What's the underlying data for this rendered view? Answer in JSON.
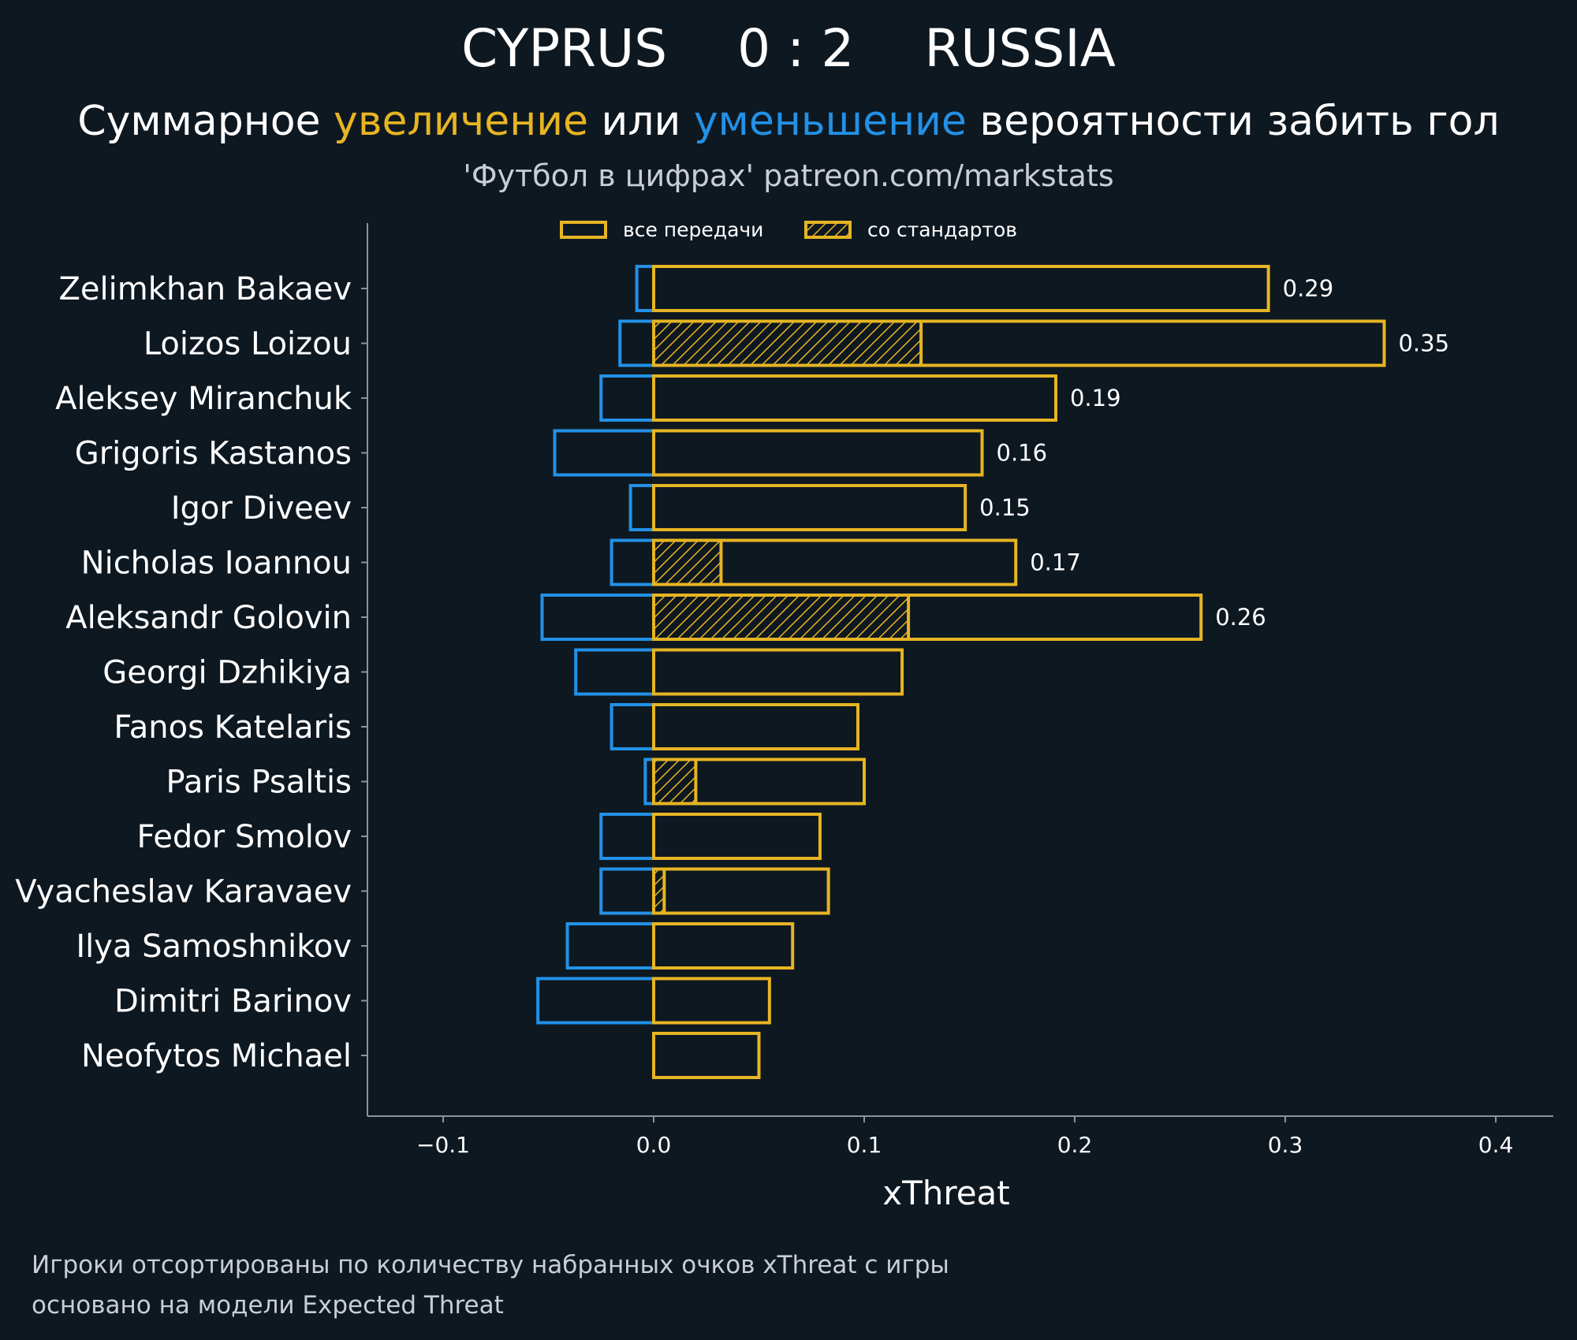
{
  "header": {
    "home_team": "CYPRUS",
    "score": "0 : 2",
    "away_team": "RUSSIA",
    "subtitle_part1": "Суммарное ",
    "subtitle_increase": "увеличение",
    "subtitle_part2": " или ",
    "subtitle_decrease": "уменьшение",
    "subtitle_part3": " вероятности забить гол",
    "source": "'Футбол в цифрах' patreon.com/markstats"
  },
  "legend": {
    "all_passes": "все передачи",
    "set_pieces": "со стандартов"
  },
  "footnote": {
    "line1": "Игроки отсортированы по количеству набранных очков xThreat с игры",
    "line2": "основано на модели Expected Threat"
  },
  "colors": {
    "background": "#0e1821",
    "increase": "#e6b523",
    "decrease": "#2391e6",
    "axis": "#8a949c",
    "muted_text": "#c9ced3"
  },
  "chart_data": {
    "type": "bar",
    "orientation": "horizontal",
    "xlabel": "xThreat",
    "xlim": [
      -0.135,
      0.42
    ],
    "xticks": [
      -0.1,
      0.0,
      0.1,
      0.2,
      0.3,
      0.4
    ],
    "xtick_labels": [
      "−0.1",
      "0.0",
      "0.1",
      "0.2",
      "0.3",
      "0.4"
    ],
    "players": [
      "Zelimkhan Bakaev",
      "Loizos Loizou",
      "Aleksey Miranchuk",
      "Grigoris Kastanos",
      "Igor Diveev",
      "Nicholas Ioannou",
      "Aleksandr Golovin",
      "Georgi Dzhikiya",
      "Fanos Katelaris",
      "Paris Psaltis",
      "Fedor Smolov",
      "Vyacheslav Karavaev",
      "Ilya Samoshnikov",
      "Dimitri Barinov",
      "Neofytos Michael"
    ],
    "series": [
      {
        "name": "все передачи (увеличение)",
        "values": [
          0.292,
          0.347,
          0.191,
          0.156,
          0.148,
          0.172,
          0.26,
          0.118,
          0.097,
          0.1,
          0.079,
          0.083,
          0.066,
          0.055,
          0.05
        ]
      },
      {
        "name": "со стандартов",
        "values": [
          0,
          0.127,
          0,
          0,
          0,
          0.032,
          0.121,
          0,
          0,
          0.02,
          0,
          0.005,
          0,
          0,
          0
        ]
      },
      {
        "name": "уменьшение",
        "values": [
          -0.008,
          -0.016,
          -0.025,
          -0.047,
          -0.011,
          -0.02,
          -0.053,
          -0.037,
          -0.02,
          -0.004,
          -0.025,
          -0.025,
          -0.041,
          -0.055,
          0
        ]
      }
    ],
    "value_labels": [
      "0.29",
      "0.35",
      "0.19",
      "0.16",
      "0.15",
      "0.17",
      "0.26",
      "",
      "",
      "",
      "",
      "",
      "",
      "",
      ""
    ]
  }
}
